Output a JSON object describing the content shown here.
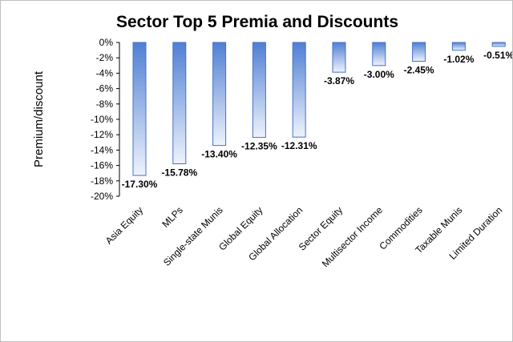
{
  "chart_data": {
    "type": "bar",
    "title": "Sector Top 5 Premia and Discounts",
    "xlabel": "",
    "ylabel": "Premium/discount",
    "categories": [
      "Asia Equity",
      "MLPs",
      "Single-state Munis",
      "Global Equity",
      "Global Allocation",
      "Sector Equity",
      "Multisector Income",
      "Commodities",
      "Taxable Munis",
      "Limited Duration"
    ],
    "values": [
      -17.3,
      -15.78,
      -13.4,
      -12.35,
      -12.31,
      -3.87,
      -3.0,
      -2.45,
      -1.02,
      -0.51
    ],
    "data_labels": [
      "-17.30%",
      "-15.78%",
      "-13.40%",
      "-12.35%",
      "-12.31%",
      "-3.87%",
      "-3.00%",
      "-2.45%",
      "-1.02%",
      "-0.51%"
    ],
    "y_ticks": [
      "0%",
      "-2%",
      "-4%",
      "-6%",
      "-8%",
      "-10%",
      "-12%",
      "-14%",
      "-16%",
      "-18%",
      "-20%"
    ],
    "ylim": [
      -20,
      0
    ],
    "grid": false,
    "legend": "none",
    "colors": {
      "bar_top": "#4f7fd4",
      "bar_bottom": "#eef3fc",
      "bar_edge": "#4472c4"
    }
  }
}
